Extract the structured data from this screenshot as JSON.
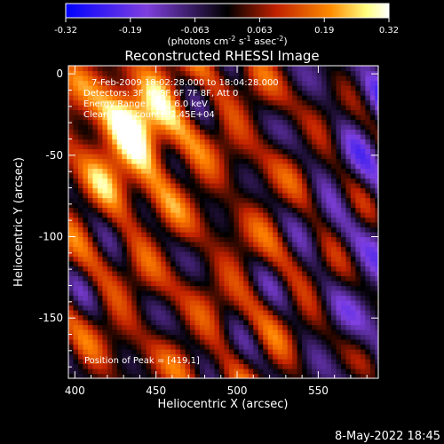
{
  "chart_data": {
    "type": "heatmap",
    "title": "Reconstructed RHESSI Image",
    "xlabel": "Heliocentric X (arcsec)",
    "ylabel": "Heliocentric Y (arcsec)",
    "xlim": [
      396,
      587
    ],
    "ylim": [
      -187,
      5
    ],
    "x_ticks": [
      400,
      450,
      500,
      550
    ],
    "y_ticks": [
      0,
      -50,
      -100,
      -150
    ],
    "colorbar": {
      "ticks": [
        "-0.32",
        "-0.19",
        "-0.063",
        "0.063",
        "0.19",
        "0.32"
      ],
      "range": [
        -0.32,
        0.32
      ],
      "unit_parts": {
        "a": "(photons cm",
        "a_sup": "-2",
        "b": " s",
        "b_sup": "-1",
        "c": " asec",
        "c_sup": "-2",
        "d": ")"
      }
    },
    "annotations": {
      "time": "7-Feb-2009 18:02:28.000 to 18:04:28.000",
      "detectors": "Detectors: 3F 4F 5F 6F 7F 8F, Att 0",
      "energy": "Energy Range: 3.0 - 6.0 keV",
      "clean": "Clean    Total counts: 2.45E+04",
      "peak": "Position of Peak = [419,1]"
    },
    "peak_position": [
      419,
      1
    ],
    "colors": [
      "#0000ff",
      "#8040e0",
      "#000000",
      "#c02000",
      "#ff8000",
      "#ffff90",
      "#ffffff"
    ]
  },
  "timestamp": "8-May-2022 18:45"
}
